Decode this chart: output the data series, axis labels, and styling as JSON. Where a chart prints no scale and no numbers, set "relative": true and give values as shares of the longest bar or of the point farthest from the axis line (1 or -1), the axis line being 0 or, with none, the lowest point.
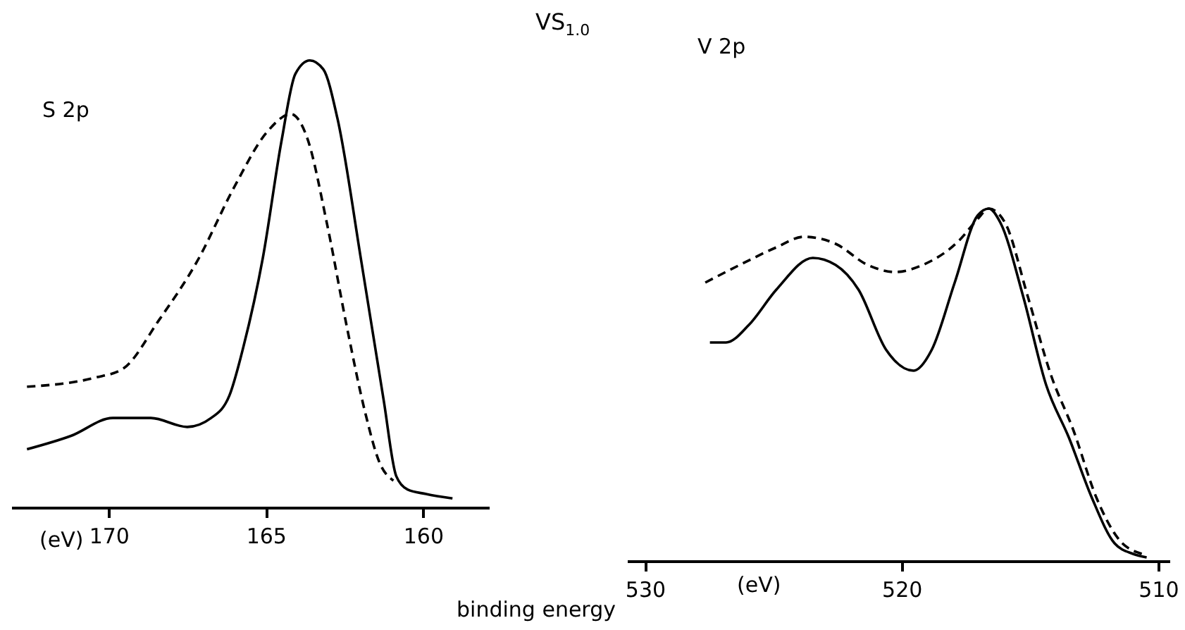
{
  "chart_data": [
    {
      "type": "line",
      "relative": true,
      "xlim": [
        173.1,
        157.9
      ],
      "xticks": [
        170,
        165,
        160
      ],
      "grid": false,
      "annotations": [
        "S 2p",
        "(eV)"
      ],
      "series": [
        {
          "color": "#000000",
          "line_style": "solid",
          "x": [
            172.6,
            171.2,
            169.87,
            168.66,
            167.5,
            166.74,
            166.16,
            165.71,
            165.09,
            164.5,
            164.06,
            163.6,
            163.17,
            162.72,
            161.96,
            161.25,
            160.85,
            160.49,
            159.9,
            159.06
          ],
          "values": [
            0.13,
            0.16,
            0.2,
            0.2,
            0.18,
            0.2,
            0.25,
            0.36,
            0.56,
            0.82,
            0.97,
            1.0,
            0.98,
            0.87,
            0.55,
            0.24,
            0.07,
            0.04,
            0.03,
            0.02
          ]
        },
        {
          "color": "#000000",
          "line_style": "dashed",
          "x": [
            172.6,
            170.45,
            169.55,
            168.39,
            167.19,
            165.98,
            164.96,
            164.2,
            163.7,
            163.04,
            162.41,
            161.83,
            161.38,
            160.94
          ],
          "values": [
            0.27,
            0.29,
            0.31,
            0.42,
            0.55,
            0.72,
            0.84,
            0.88,
            0.83,
            0.63,
            0.4,
            0.21,
            0.1,
            0.06
          ]
        }
      ]
    },
    {
      "type": "line",
      "title": "VS$_{1.0}$",
      "xlabel": "binding energy",
      "relative": true,
      "xlim": [
        530.7,
        509.56
      ],
      "xticks": [
        530,
        520,
        510
      ],
      "grid": false,
      "annotations": [
        "V 2p",
        "(eV)"
      ],
      "series": [
        {
          "color": "#000000",
          "line_style": "solid",
          "x": [
            527.47,
            526.84,
            525.95,
            524.88,
            523.46,
            522.57,
            521.68,
            520.61,
            519.54,
            518.82,
            517.93,
            517.04,
            516.6,
            516.15,
            515.26,
            514.37,
            513.48,
            512.59,
            511.7,
            510.98,
            510.45
          ],
          "values": [
            0.62,
            0.62,
            0.67,
            0.77,
            0.86,
            0.84,
            0.77,
            0.6,
            0.54,
            0.6,
            0.79,
            0.98,
            1.0,
            0.96,
            0.75,
            0.5,
            0.35,
            0.18,
            0.05,
            0.02,
            0.01
          ]
        },
        {
          "color": "#000000",
          "line_style": "dashed",
          "x": [
            527.65,
            526.31,
            524.88,
            523.81,
            522.57,
            521.32,
            520.25,
            519.18,
            517.75,
            517.04,
            516.6,
            515.97,
            515.08,
            514.19,
            513.3,
            512.41,
            511.52,
            510.63
          ],
          "values": [
            0.79,
            0.84,
            0.89,
            0.92,
            0.9,
            0.84,
            0.82,
            0.84,
            0.91,
            0.97,
            1.0,
            0.96,
            0.75,
            0.53,
            0.37,
            0.18,
            0.06,
            0.02
          ]
        }
      ]
    }
  ]
}
